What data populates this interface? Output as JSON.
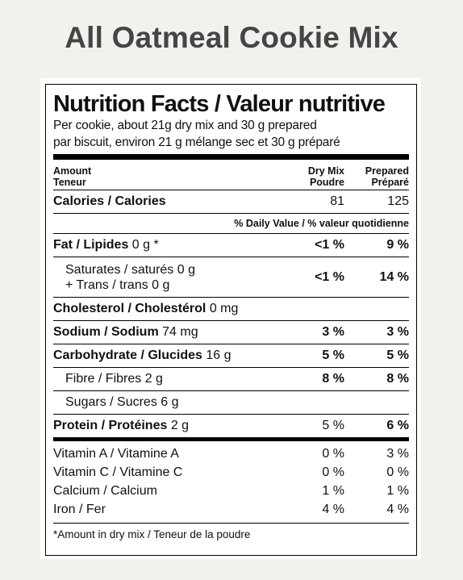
{
  "page_title": "All Oatmeal Cookie Mix",
  "label": {
    "title": "Nutrition Facts / Valeur nutritive",
    "serving_en": "Per cookie, about 21g dry mix and 30 g prepared",
    "serving_fr": "par biscuit, environ 21 g mélange sec et 30 g préparé",
    "header": {
      "amount_en": "Amount",
      "amount_fr": "Teneur",
      "col1_en": "Dry Mix",
      "col1_fr": "Poudre",
      "col2_en": "Prepared",
      "col2_fr": "Préparé"
    },
    "calories": {
      "name": "Calories / Calories",
      "dry": "81",
      "prepared": "125"
    },
    "daily_value_note": "% Daily Value / % valeur quotidienne",
    "fat": {
      "name": "Fat / Lipides",
      "amount": "0 g *",
      "dry": "<1 %",
      "prepared": "9 %"
    },
    "saturated": {
      "line1": "Saturates / saturés 0 g",
      "line2": "+ Trans / trans 0 g",
      "dry": "<1 %",
      "prepared": "14 %"
    },
    "cholesterol": {
      "name": "Cholesterol / Cholestérol",
      "amount": "0 mg"
    },
    "sodium": {
      "name": "Sodium / Sodium",
      "amount": "74 mg",
      "dry": "3 %",
      "prepared": "3 %"
    },
    "carbohydrate": {
      "name": "Carbohydrate / Glucides",
      "amount": "16 g",
      "dry": "5 %",
      "prepared": "5 %"
    },
    "fibre": {
      "name": "Fibre / Fibres 2 g",
      "dry": "8 %",
      "prepared": "8 %"
    },
    "sugars": {
      "name": "Sugars / Sucres 6 g"
    },
    "protein": {
      "name": "Protein / Protéines",
      "amount": "2 g",
      "dry": "5 %",
      "prepared": "6 %"
    },
    "vitamins": [
      {
        "name": "Vitamin A / Vitamine A",
        "dry": "0 %",
        "prepared": "3 %"
      },
      {
        "name": "Vitamin C / Vitamine C",
        "dry": "0 %",
        "prepared": "0 %"
      },
      {
        "name": "Calcium / Calcium",
        "dry": "1 %",
        "prepared": "1 %"
      },
      {
        "name": "Iron / Fer",
        "dry": "4 %",
        "prepared": "4 %"
      }
    ],
    "footnote": "*Amount in dry mix / Teneur de la poudre"
  }
}
